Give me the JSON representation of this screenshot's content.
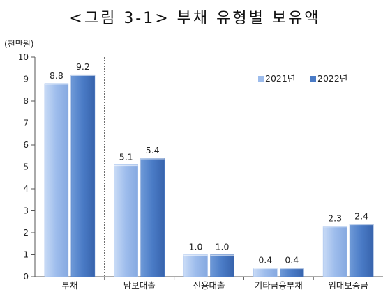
{
  "chart_data": {
    "type": "bar",
    "title": "<그림 3-1> 부채 유형별 보유액",
    "unit_label": "(천만원)",
    "categories": [
      "부채",
      "담보대출",
      "신용대출",
      "기타금융부채",
      "임대보증금"
    ],
    "series": [
      {
        "name": "2021년",
        "values": [
          8.8,
          5.1,
          1.0,
          0.4,
          2.3
        ],
        "color": "#9dbcec"
      },
      {
        "name": "2022년",
        "values": [
          9.2,
          5.4,
          1.0,
          0.4,
          2.4
        ],
        "color": "#4a7bc6"
      }
    ],
    "value_labels": [
      [
        "8.8",
        "5.1",
        "1.0",
        "0.4",
        "2.3"
      ],
      [
        "9.2",
        "5.4",
        "1.0",
        "0.4",
        "2.4"
      ]
    ],
    "ylim": [
      0,
      10
    ],
    "yticks": [
      "0",
      "1",
      "2",
      "3",
      "4",
      "5",
      "6",
      "7",
      "8",
      "9",
      "10"
    ],
    "grid": false,
    "legend_position": "top-right",
    "separator_after_category": "부채"
  }
}
